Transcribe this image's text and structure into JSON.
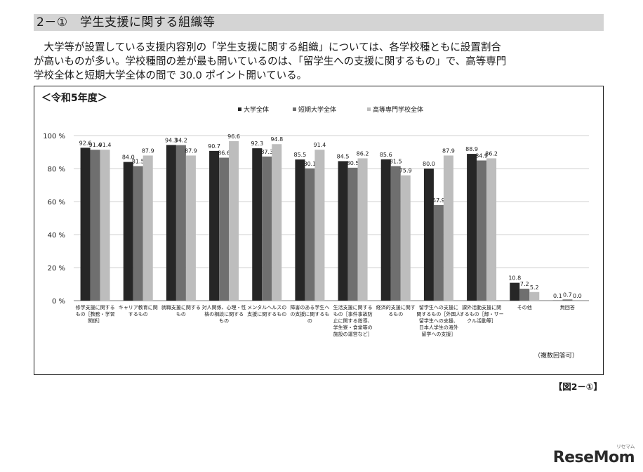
{
  "section": {
    "title": "2－①　学生支援に関する組織等"
  },
  "body": {
    "line1": "　大学等が設置している支援内容別の「学生支援に関する組織」については、各学校種ともに設置割合",
    "line2": "が高いものが多い。学校種間の差が最も開いているのは、「留学生への支援に関するもの」で、高等専門",
    "line3": "学校全体と短期大学全体の間で 30.0 ポイント開いている。"
  },
  "chart_title": "＜令和5年度＞",
  "figure_caption": "【図2－①】",
  "watermark": "ReseMom",
  "watermark_small": "リセマム",
  "chart_data": {
    "type": "bar",
    "note": "（複数回答可）",
    "ylim": [
      0,
      100
    ],
    "yticks": [
      "0 %",
      "20 %",
      "40 %",
      "60 %",
      "80 %",
      "100 %"
    ],
    "categories": [
      [
        "修学支援に関する",
        "もの［教務・学習",
        "関係］"
      ],
      [
        "キャリア教育に関",
        "するもの"
      ],
      [
        "就職支援に関する",
        "もの"
      ],
      [
        "対人関係、心理・性",
        "格の相談に関する",
        "もの"
      ],
      [
        "メンタルヘルスの",
        "支援に関するもの"
      ],
      [
        "障害のある学生へ",
        "の支援に関するも",
        "の"
      ],
      [
        "生活支援に関する",
        "もの［事件事故防",
        "止に関する指導、",
        "学生寮・食堂等の",
        "施設の運営など］"
      ],
      [
        "経済的支援に関す",
        "るもの"
      ],
      [
        "留学生への支援に",
        "関するもの［外国人",
        "留学生への支援、",
        "日本人学生の海外",
        "留学への支援］"
      ],
      [
        "課外活動支援に関",
        "するもの［部・サー",
        "クル活動等］"
      ],
      [
        "その他"
      ],
      [
        "無回答"
      ]
    ],
    "series": [
      {
        "name": "大学全体",
        "color": "#262626",
        "values": [
          92.6,
          84.0,
          94.3,
          90.7,
          92.3,
          85.5,
          84.5,
          85.6,
          80.0,
          88.9,
          10.8,
          0.1
        ]
      },
      {
        "name": "短期大学全体",
        "color": "#6f6f6f",
        "values": [
          91.4,
          81.5,
          94.2,
          86.6,
          87.3,
          80.1,
          80.5,
          81.5,
          57.9,
          84.9,
          7.2,
          0.7
        ]
      },
      {
        "name": "高等専門学校全体",
        "color": "#bdbdbd",
        "values": [
          91.4,
          87.9,
          87.9,
          96.6,
          94.8,
          91.4,
          86.2,
          75.9,
          87.9,
          86.2,
          5.2,
          0.0
        ]
      }
    ]
  }
}
